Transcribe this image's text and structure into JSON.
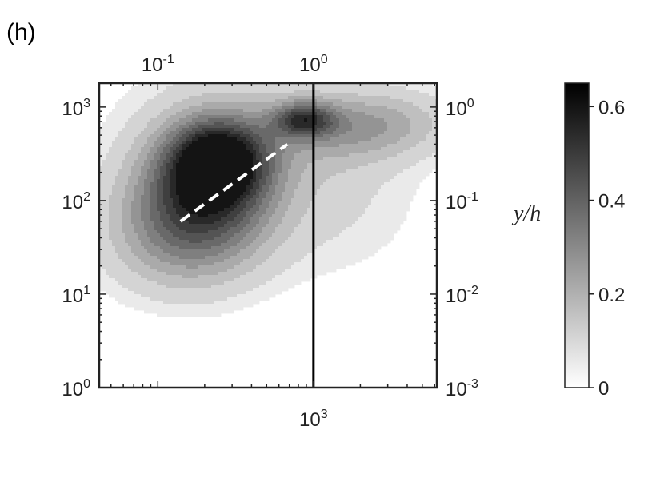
{
  "panel_label": "(h)",
  "chart_data": {
    "type": "heatmap",
    "title": "",
    "xlabel": "",
    "ylabel": "",
    "x_scale": "log",
    "y_scale": "log",
    "x_bottom_ticks": [
      {
        "value": 1000,
        "base": "10",
        "exp": "3"
      }
    ],
    "x_top_ticks": [
      {
        "value": 0.1,
        "base": "10",
        "exp": "-1"
      },
      {
        "value": 1,
        "base": "10",
        "exp": "0"
      }
    ],
    "y_left_ticks": [
      {
        "value": 1,
        "base": "10",
        "exp": "0"
      },
      {
        "value": 10,
        "base": "10",
        "exp": "1"
      },
      {
        "value": 100,
        "base": "10",
        "exp": "2"
      },
      {
        "value": 1000,
        "base": "10",
        "exp": "3"
      }
    ],
    "y_right_ticks": [
      {
        "value": 0.001,
        "base": "10",
        "exp": "-3"
      },
      {
        "value": 0.01,
        "base": "10",
        "exp": "-2"
      },
      {
        "value": 0.1,
        "base": "10",
        "exp": "-1"
      },
      {
        "value": 1,
        "base": "10",
        "exp": "0"
      }
    ],
    "y_range": [
      1,
      1800
    ],
    "contour_levels": 11,
    "vertical_line": {
      "x_top": 1
    },
    "dashed_line": {
      "from": [
        0.14,
        60
      ],
      "to": [
        0.68,
        400
      ]
    },
    "colorbar": {
      "label": "y/h",
      "range": [
        0,
        0.65
      ],
      "ticks": [
        {
          "value": 0,
          "text": "0"
        },
        {
          "value": 0.2,
          "text": "0.2"
        },
        {
          "value": 0.4,
          "text": "0.4"
        },
        {
          "value": 0.6,
          "text": "0.6"
        }
      ],
      "colormap": [
        "#ffffff",
        "#000000"
      ]
    },
    "grid": false
  }
}
